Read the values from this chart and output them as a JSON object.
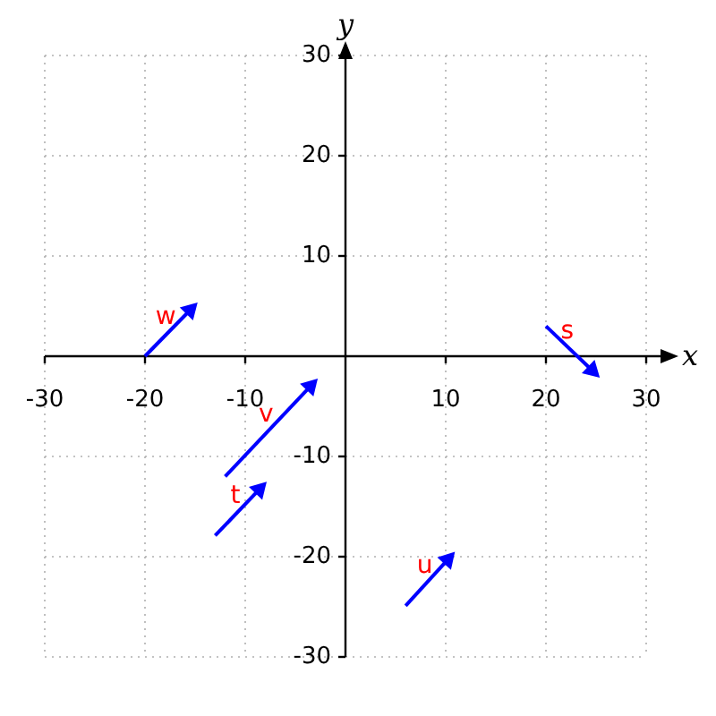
{
  "chart_data": {
    "type": "line",
    "xlabel": "x",
    "ylabel": "y",
    "xlim": [
      -30,
      30
    ],
    "ylim": [
      -30,
      30
    ],
    "xticks": [
      -30,
      -20,
      -10,
      10,
      20,
      30
    ],
    "yticks": [
      -30,
      -20,
      -10,
      10,
      20,
      30
    ],
    "grid": true,
    "marker": "triangle",
    "line_style": "solid",
    "series": [
      {
        "name": "s",
        "color": "#0000ff",
        "x": [
          20,
          24.6
        ],
        "values": [
          3,
          -1.4
        ]
      },
      {
        "name": "t",
        "color": "#0000ff",
        "x": [
          -13,
          -8.6
        ],
        "values": [
          -17.9,
          -13.3
        ]
      },
      {
        "name": "u",
        "color": "#0000ff",
        "x": [
          6,
          10.2
        ],
        "values": [
          -24.9,
          -20.3
        ]
      },
      {
        "name": "v",
        "color": "#0000ff",
        "x": [
          -12,
          -3.5
        ],
        "values": [
          -12,
          -3
        ]
      },
      {
        "name": "w",
        "color": "#0000ff",
        "x": [
          -20,
          -15.5
        ],
        "values": [
          0,
          4.6
        ]
      }
    ]
  }
}
